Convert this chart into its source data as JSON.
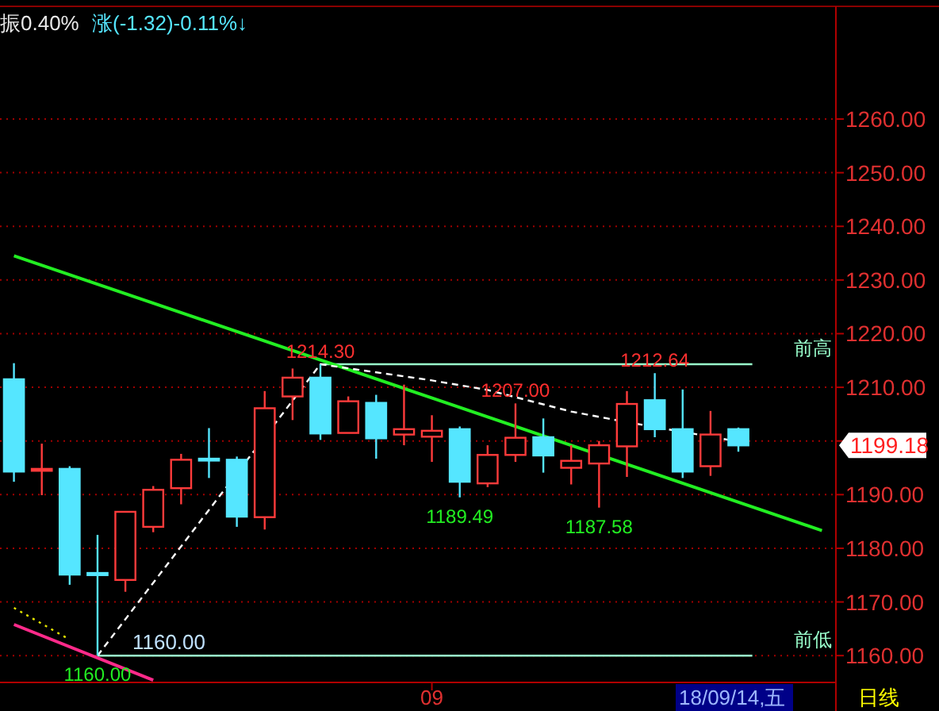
{
  "chart_data": {
    "type": "candlestick",
    "categories": [
      null,
      null,
      null,
      null,
      null,
      null,
      null,
      null,
      null,
      null,
      null,
      null,
      null,
      null,
      null,
      "09",
      null,
      null,
      null,
      null,
      null,
      null,
      null,
      null,
      null,
      null,
      null,
      null,
      null,
      null
    ],
    "ohlc": [
      [
        1211.5,
        1214.5,
        1192.4,
        1194.3
      ],
      [
        1194.6,
        1199.5,
        1189.9,
        1194.8
      ],
      [
        1194.8,
        1195.3,
        1173.2,
        1175.1
      ],
      [
        1175.4,
        1182.5,
        1160.0,
        1175.0
      ],
      [
        1174.1,
        1186.8,
        1171.9,
        1186.8
      ],
      [
        1184.0,
        1191.6,
        1183.0,
        1190.9
      ],
      [
        1191.2,
        1197.6,
        1188.2,
        1196.5
      ],
      [
        1196.7,
        1202.4,
        1193.1,
        1196.5
      ],
      [
        1196.5,
        1197.1,
        1184.0,
        1185.9
      ],
      [
        1185.8,
        1209.3,
        1183.5,
        1206.1
      ],
      [
        1208.3,
        1213.5,
        1203.9,
        1211.8
      ],
      [
        1211.8,
        1214.3,
        1200.2,
        1201.4
      ],
      [
        1201.5,
        1208.3,
        1201.5,
        1207.4
      ],
      [
        1207.1,
        1208.6,
        1196.7,
        1200.5
      ],
      [
        1201.2,
        1210.5,
        1199.2,
        1202.2
      ],
      [
        1200.8,
        1204.8,
        1196.1,
        1201.9
      ],
      [
        1202.2,
        1202.7,
        1189.49,
        1192.4
      ],
      [
        1192.1,
        1199.2,
        1191.4,
        1197.4
      ],
      [
        1197.4,
        1207.0,
        1196.1,
        1200.6
      ],
      [
        1200.7,
        1204.2,
        1194.1,
        1197.3
      ],
      [
        1195.0,
        1199.2,
        1191.9,
        1196.3
      ],
      [
        1195.8,
        1200.0,
        1187.58,
        1199.2
      ],
      [
        1199.0,
        1209.3,
        1193.3,
        1206.9
      ],
      [
        1207.6,
        1212.64,
        1200.7,
        1202.2
      ],
      [
        1202.2,
        1209.6,
        1193.1,
        1194.3
      ],
      [
        1195.3,
        1205.6,
        1193.5,
        1201.2
      ],
      [
        1202.2,
        1202.5,
        1198.0,
        1199.18
      ],
      null,
      null,
      null
    ],
    "colors": [
      "#55e6ff",
      "#ff3b3b",
      "#55e6ff",
      "#55e6ff",
      "#ff3b3b",
      "#ff3b3b",
      "#ff3b3b",
      "#55e6ff",
      "#55e6ff",
      "#ff3b3b",
      "#ff3b3b",
      "#55e6ff",
      "#ff3b3b",
      "#55e6ff",
      "#ff3b3b",
      "#ff3b3b",
      "#55e6ff",
      "#ff3b3b",
      "#ff3b3b",
      "#55e6ff",
      "#ff3b3b",
      "#ff3b3b",
      "#ff3b3b",
      "#55e6ff",
      "#55e6ff",
      "#ff3b3b",
      "#55e6ff",
      null,
      null,
      null
    ],
    "value_labels": [
      null,
      null,
      null,
      "1160.00",
      null,
      null,
      null,
      null,
      null,
      null,
      null,
      "1214.30",
      null,
      null,
      null,
      null,
      "1189.49",
      null,
      "1207.00",
      null,
      null,
      "1187.58",
      null,
      "1212.64",
      null,
      null,
      null,
      null,
      null,
      null
    ],
    "series": [
      {
        "type": "line",
        "color": "#22ee22",
        "values": [
          1234.5,
          null,
          null,
          null,
          null,
          null,
          null,
          null,
          null,
          null,
          null,
          null,
          null,
          null,
          null,
          null,
          null,
          null,
          null,
          null,
          null,
          null,
          null,
          null,
          null,
          null,
          null,
          null,
          null,
          1183.3
        ]
      },
      {
        "type": "line",
        "color": "#ff2a8a",
        "values": [
          1165.8,
          null,
          null,
          null,
          null,
          1155.4,
          null,
          null,
          null,
          null,
          null,
          null,
          null,
          null,
          null,
          null,
          null,
          null,
          null,
          null,
          null,
          null,
          null,
          null,
          null,
          null,
          null,
          null,
          null,
          null
        ]
      },
      {
        "type": "line",
        "color": "#e6e600",
        "line_style": "dotted",
        "values": [
          1168.9,
          null,
          1163.0,
          null,
          null,
          null,
          null,
          null,
          null,
          null,
          null,
          null,
          null,
          null,
          null,
          null,
          null,
          null,
          null,
          null,
          null,
          null,
          null,
          null,
          null,
          null,
          null,
          null,
          null,
          null
        ]
      },
      {
        "type": "line",
        "color": "#ffffff",
        "line_style": "dashed",
        "values": [
          null,
          null,
          null,
          1160.0,
          null,
          null,
          null,
          null,
          null,
          null,
          null,
          1214.3,
          null,
          null,
          null,
          1211.3,
          null,
          1209.5,
          null,
          null,
          1205.5,
          null,
          1203.5,
          null,
          null,
          null,
          1199.9,
          null,
          null,
          null
        ]
      }
    ],
    "ylim": [
      1155,
      1281
    ],
    "yticks": [
      {
        "value": 1160,
        "label": "1160.00"
      },
      {
        "value": 1170,
        "label": "1170.00"
      },
      {
        "value": 1180,
        "label": "1180.00"
      },
      {
        "value": 1190,
        "label": "1190.00"
      },
      {
        "value": 1200,
        "label": null
      },
      {
        "value": 1210,
        "label": "1210.00"
      },
      {
        "value": 1220,
        "label": "1220.00"
      },
      {
        "value": 1230,
        "label": "1230.00"
      },
      {
        "value": 1240,
        "label": "1240.00"
      },
      {
        "value": 1250,
        "label": "1250.00"
      },
      {
        "value": 1260,
        "label": "1260.00"
      }
    ],
    "grid": "y",
    "ref_lines": [
      {
        "axis": "y",
        "value": 1214.3,
        "label": "前高",
        "color": "#99ffcc"
      },
      {
        "axis": "y",
        "value": 1160,
        "label": "前低",
        "color": "#99ffcc"
      }
    ],
    "annotations": [
      "振0.40%",
      "涨(-1.32)-0.11%↓",
      "18/09/14,五",
      "日线",
      "1199.18",
      {
        "text": "1160.00",
        "y": 1160
      }
    ]
  }
}
